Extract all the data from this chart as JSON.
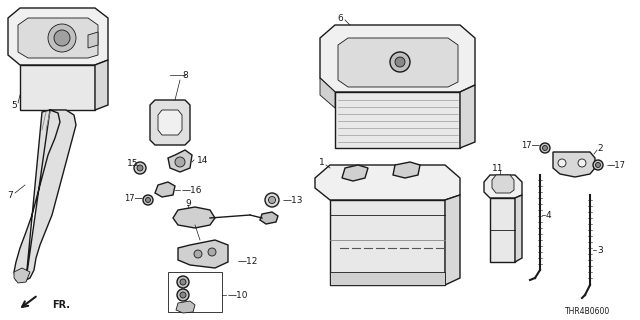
{
  "bg_color": "#ffffff",
  "lc": "#1a1a1a",
  "part_code": "THR4B0600",
  "fr_label": "FR.",
  "figsize": [
    6.4,
    3.2
  ],
  "dpi": 100
}
